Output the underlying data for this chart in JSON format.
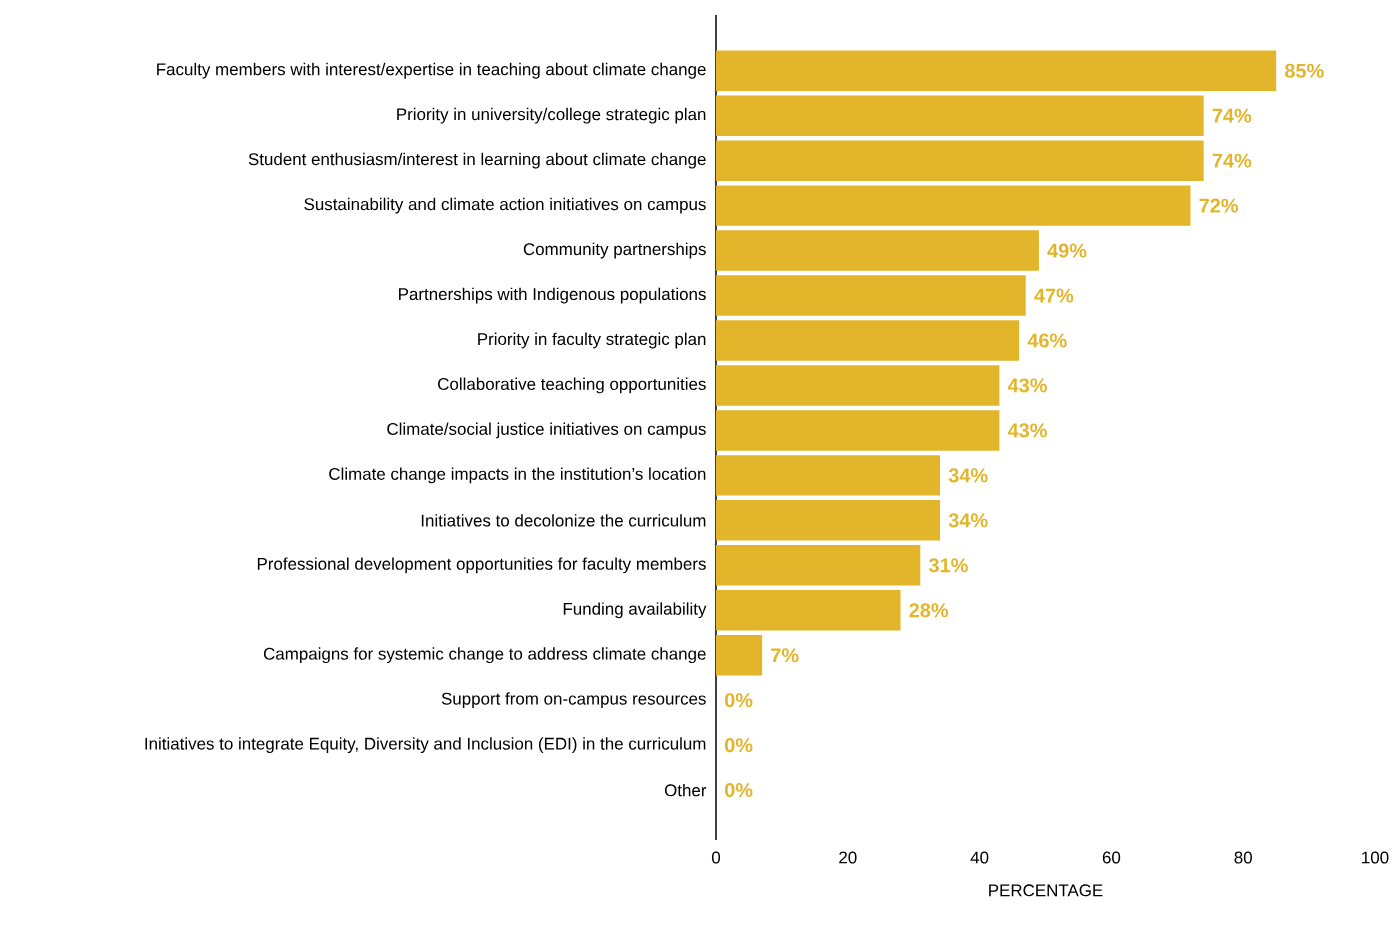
{
  "chart_data": {
    "type": "bar",
    "orientation": "horizontal",
    "xlabel": "PERCENTAGE",
    "categories": [
      "Faculty members with interest/expertise in teaching about climate change",
      "Priority in university/college strategic plan",
      "Student enthusiasm/interest in learning about climate change",
      "Sustainability and climate action initiatives on campus",
      "Community partnerships",
      "Partnerships with Indigenous populations",
      "Priority in faculty strategic plan",
      "Collaborative teaching opportunities",
      "Climate/social justice initiatives on campus",
      "Climate change impacts in the institution’s location",
      "Initiatives to decolonize the curriculum",
      "Professional development opportunities for faculty members",
      "Funding availability",
      "Campaigns for systemic change to address climate change",
      "Support from on-campus resources",
      "Initiatives to integrate Equity, Diversity and Inclusion (EDI) in the curriculum",
      "Other"
    ],
    "values": [
      85,
      74,
      74,
      72,
      49,
      47,
      46,
      43,
      43,
      34,
      34,
      31,
      28,
      7,
      0,
      0,
      0
    ],
    "value_labels": [
      "85%",
      "74%",
      "74%",
      "72%",
      "49%",
      "47%",
      "46%",
      "43%",
      "43%",
      "34%",
      "34%",
      "31%",
      "28%",
      "7%",
      "0%",
      "0%",
      "0%"
    ],
    "color": "#e3b52a",
    "xlim": [
      0,
      100
    ],
    "xticks": [
      0,
      20,
      40,
      60,
      80,
      100
    ]
  }
}
